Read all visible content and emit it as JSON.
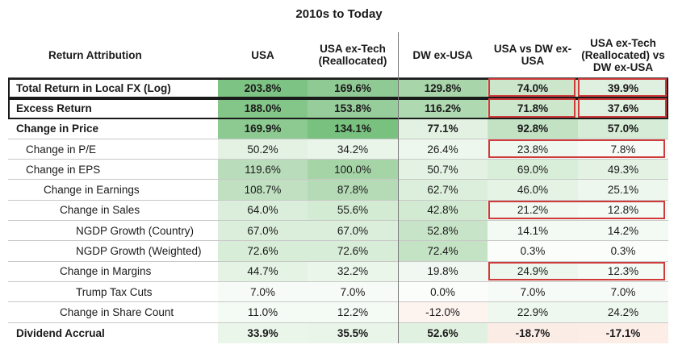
{
  "title": "2010s to Today",
  "columns": [
    "Return Attribution",
    "USA",
    "USA ex-Tech (Reallocated)",
    "DW ex-USA",
    "USA vs DW ex-USA",
    "USA ex-Tech (Reallocated) vs DW ex-USA"
  ],
  "rows": [
    {
      "label": "Total Return in Local FX (Log)",
      "indent": 0,
      "bold": true,
      "values": [
        "203.8%",
        "169.6%",
        "129.8%",
        "74.0%",
        "39.9%"
      ],
      "colors": [
        "#7dc383",
        "#8fca94",
        "#a8d5aa",
        "#cbe6cb",
        "#e0f0e0"
      ]
    },
    {
      "label": "Excess Return",
      "indent": 0,
      "bold": true,
      "values": [
        "188.0%",
        "153.8%",
        "116.2%",
        "71.8%",
        "37.6%"
      ],
      "colors": [
        "#84c689",
        "#96cd9a",
        "#afd9b1",
        "#cde7cd",
        "#e1f1e1"
      ]
    },
    {
      "label": "Change in Price",
      "indent": 0,
      "bold": true,
      "values": [
        "169.9%",
        "134.1%",
        "77.1%",
        "92.8%",
        "57.0%"
      ],
      "colors": [
        "#8dca91",
        "#78c17e",
        "#e2f1e2",
        "#c3e2c4",
        "#d6ecd6"
      ]
    },
    {
      "label": "Change in P/E",
      "indent": 1,
      "bold": false,
      "values": [
        "50.2%",
        "34.2%",
        "26.4%",
        "23.8%",
        "7.8%"
      ],
      "colors": [
        "#e3f2e3",
        "#eaf5ea",
        "#eef7ee",
        "#eff8ef",
        "#f6fbf6"
      ]
    },
    {
      "label": "Change in EPS",
      "indent": 1,
      "bold": false,
      "values": [
        "119.6%",
        "100.0%",
        "50.7%",
        "69.0%",
        "49.3%"
      ],
      "colors": [
        "#b9ddba",
        "#a5d4a7",
        "#e3f2e3",
        "#d9eed9",
        "#e4f2e4"
      ]
    },
    {
      "label": "Change in Earnings",
      "indent": 2,
      "bold": false,
      "values": [
        "108.7%",
        "87.8%",
        "62.7%",
        "46.0%",
        "25.1%"
      ],
      "colors": [
        "#c0e0c1",
        "#b5dbb6",
        "#dcefdc",
        "#e5f3e5",
        "#eef7ee"
      ]
    },
    {
      "label": "Change in Sales",
      "indent": 3,
      "bold": false,
      "values": [
        "64.0%",
        "55.6%",
        "42.8%",
        "21.2%",
        "12.8%"
      ],
      "colors": [
        "#dbeedb",
        "#d3ebd3",
        "#d2ead2",
        "#f0f8f0",
        "#f4faf4"
      ]
    },
    {
      "label": "NGDP Growth (Country)",
      "indent": 4,
      "bold": false,
      "values": [
        "67.0%",
        "67.0%",
        "52.8%",
        "14.1%",
        "14.2%"
      ],
      "colors": [
        "#dbeedb",
        "#dbeedb",
        "#c8e4c8",
        "#f3f9f3",
        "#f3f9f3"
      ]
    },
    {
      "label": "NGDP Growth (Weighted)",
      "indent": 4,
      "bold": false,
      "values": [
        "72.6%",
        "72.6%",
        "72.4%",
        "0.3%",
        "0.3%"
      ],
      "colors": [
        "#d8edd8",
        "#d8edd8",
        "#c4e2c4",
        "#fafdfa",
        "#fafdfa"
      ]
    },
    {
      "label": "Change in Margins",
      "indent": 3,
      "bold": false,
      "values": [
        "44.7%",
        "32.2%",
        "19.8%",
        "24.9%",
        "12.3%"
      ],
      "colors": [
        "#e5f3e5",
        "#ebf6eb",
        "#f1f8f1",
        "#eef7ee",
        "#f4faf4"
      ]
    },
    {
      "label": "Trump Tax Cuts",
      "indent": 4,
      "bold": false,
      "values": [
        "7.0%",
        "7.0%",
        "0.0%",
        "7.0%",
        "7.0%"
      ],
      "colors": [
        "#f7fbf7",
        "#f7fbf7",
        "#fbfdfb",
        "#f7fbf7",
        "#f7fbf7"
      ]
    },
    {
      "label": "Change in Share Count",
      "indent": 3,
      "bold": false,
      "values": [
        "11.0%",
        "12.2%",
        "-12.0%",
        "22.9%",
        "24.2%"
      ],
      "colors": [
        "#f4faf4",
        "#f4faf4",
        "#fdf3ef",
        "#eff8ef",
        "#eff8ef"
      ]
    },
    {
      "label": "Dividend Accrual",
      "indent": 0,
      "bold": true,
      "values": [
        "33.9%",
        "35.5%",
        "52.6%",
        "-18.7%",
        "-17.1%"
      ],
      "colors": [
        "#ebf6eb",
        "#e9f5e9",
        "#e1f1e1",
        "#fcece6",
        "#fcede7"
      ]
    }
  ],
  "colors": {
    "highlight_border": "#1a1a1a",
    "callout_border": "#d03a3a",
    "divider": "#777777"
  }
}
